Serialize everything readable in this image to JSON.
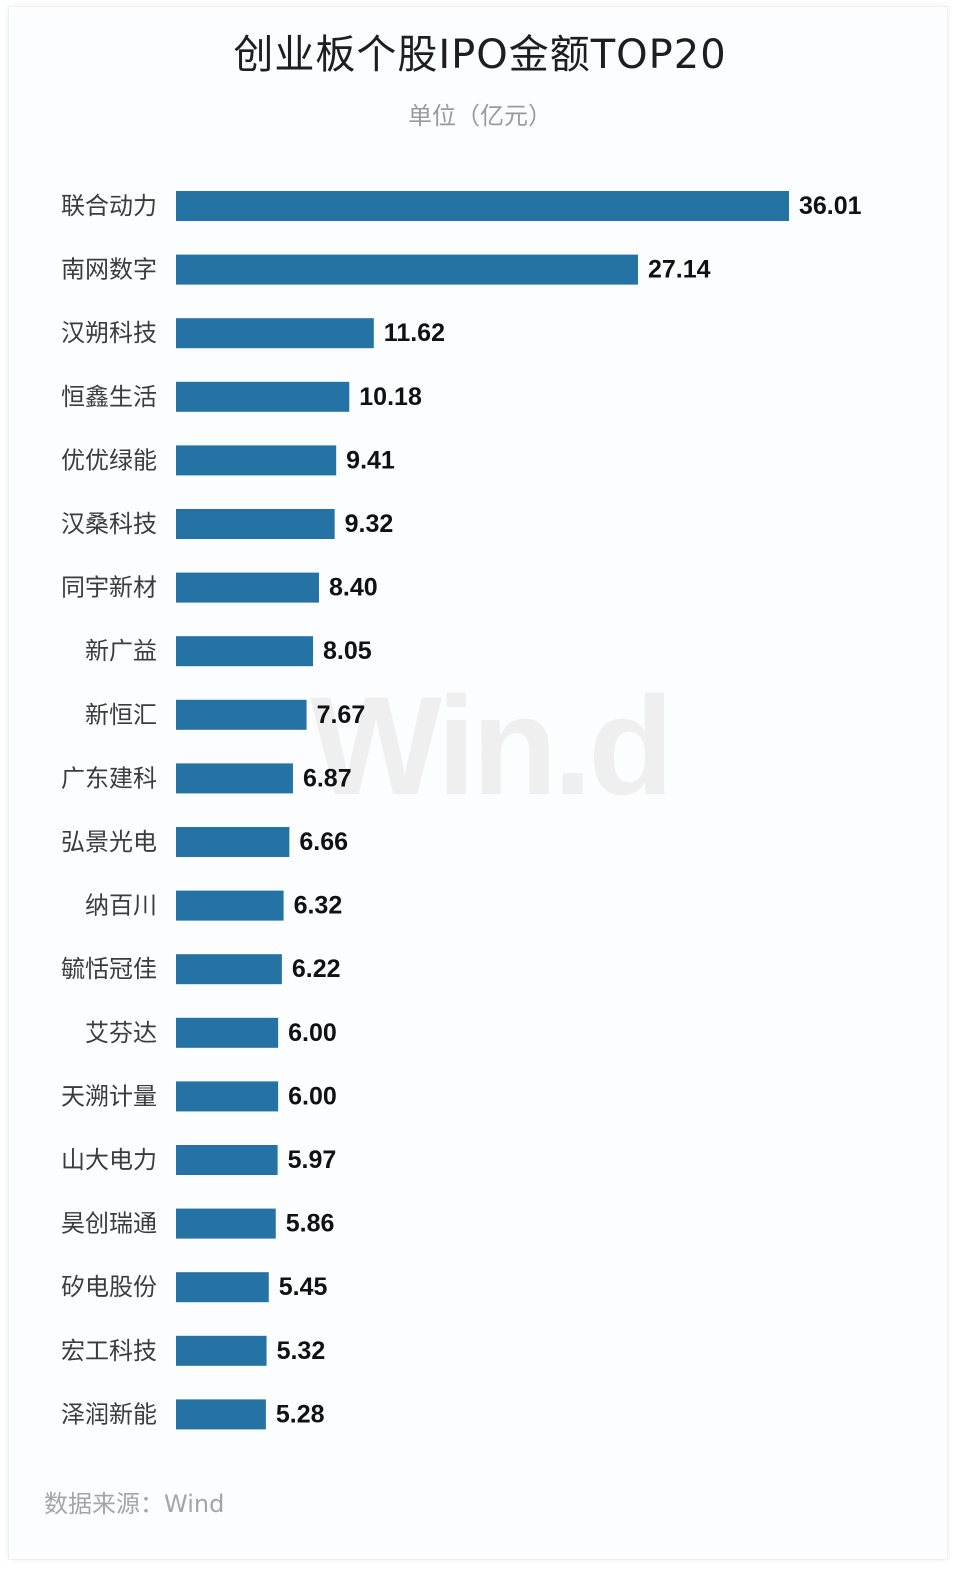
{
  "title": "创业板个股IPO金额TOP20",
  "subtitle": "单位（亿元）",
  "watermark": "Win.d",
  "source": "数据来源：Wind",
  "colors": {
    "bar": "#2473a4",
    "category_label": "#3c3c3c",
    "value_label": "#111111"
  },
  "chart_data": {
    "type": "bar",
    "orientation": "horizontal",
    "categories": [
      "联合动力",
      "南网数字",
      "汉朔科技",
      "恒鑫生活",
      "优优绿能",
      "汉桑科技",
      "同宇新材",
      "新广益",
      "新恒汇",
      "广东建科",
      "弘景光电",
      "纳百川",
      "毓恬冠佳",
      "艾芬达",
      "天溯计量",
      "山大电力",
      "昊创瑞通",
      "矽电股份",
      "宏工科技",
      "泽润新能"
    ],
    "values": [
      36.01,
      27.14,
      11.62,
      10.18,
      9.41,
      9.32,
      8.4,
      8.05,
      7.67,
      6.87,
      6.66,
      6.32,
      6.22,
      6.0,
      6.0,
      5.97,
      5.86,
      5.45,
      5.32,
      5.28
    ],
    "value_labels": [
      "36.01",
      "27.14",
      "11.62",
      "10.18",
      "9.41",
      "9.32",
      "8.40",
      "8.05",
      "7.67",
      "6.87",
      "6.66",
      "6.32",
      "6.22",
      "6.00",
      "6.00",
      "5.97",
      "5.86",
      "5.45",
      "5.32",
      "5.28"
    ],
    "title": "创业板个股IPO金额TOP20",
    "subtitle": "单位（亿元）",
    "xlabel": "",
    "ylabel": "",
    "xlim": [
      0,
      36.01
    ],
    "grid": false,
    "legend": "none"
  }
}
